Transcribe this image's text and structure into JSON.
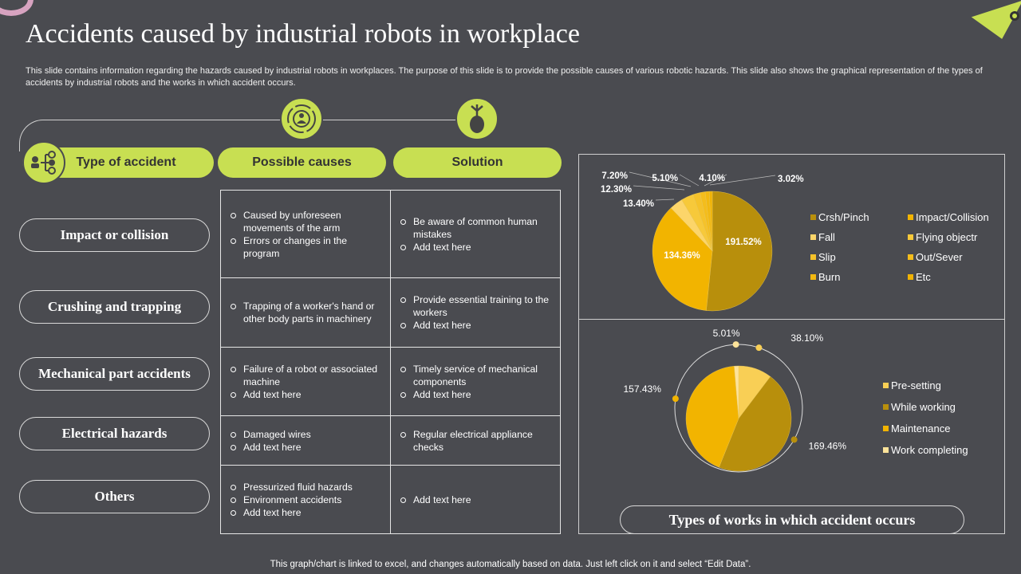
{
  "title": "Accidents caused by industrial robots in workplace",
  "description": "This slide contains information regarding the hazards caused by industrial robots in workplaces. The purpose of this slide is to provide the possible causes of various robotic hazards. This slide also shows the graphical representation of the types of accidents by industrial robots and the works in which accident occurs.",
  "headers": [
    "Type of accident",
    "Possible causes",
    "Solution"
  ],
  "rows": [
    {
      "type": "Impact or collision",
      "causes": [
        "Caused by unforeseen movements of the arm",
        "Errors or changes in the program"
      ],
      "solutions": [
        "Be aware of common human mistakes",
        "Add text here"
      ]
    },
    {
      "type": "Crushing and trapping",
      "causes": [
        "Trapping of a worker's hand or other body parts in machinery"
      ],
      "solutions": [
        "Provide essential training to the workers",
        "Add text here"
      ]
    },
    {
      "type": "Mechanical part accidents",
      "causes": [
        "Failure of a robot or associated machine",
        "Add text here"
      ],
      "solutions": [
        "Timely service of mechanical components",
        "Add text here"
      ]
    },
    {
      "type": "Electrical hazards",
      "causes": [
        "Damaged wires",
        "Add text here"
      ],
      "solutions": [
        "Regular electrical appliance checks"
      ]
    },
    {
      "type": "Others",
      "causes": [
        "Pressurized fluid hazards",
        "Environment accidents",
        "Add text here"
      ],
      "solutions": [
        "Add text here"
      ]
    }
  ],
  "colors": {
    "background": "#4a4b50",
    "accent": "#c8df52"
  },
  "chart_data": [
    {
      "type": "pie",
      "categories": [
        "Crsh/Pinch",
        "Impact/Collision",
        "Fall",
        "Flying objectr",
        "Slip",
        "Out/Sever",
        "Burn",
        "Etc"
      ],
      "values": [
        191.52,
        134.36,
        13.4,
        12.3,
        7.2,
        5.1,
        4.1,
        3.02
      ],
      "labels": [
        "191.52%",
        "134.36%",
        "13.40%",
        "12.30%",
        "7.20%",
        "5.10%",
        "4.10%",
        "3.02%"
      ],
      "colors": [
        "#b88f0c",
        "#f2b400",
        "#fcd56a",
        "#f7c93a",
        "#f5c22a",
        "#f4bd1c",
        "#f2b810",
        "#f0b305"
      ],
      "legend": "right"
    },
    {
      "type": "pie",
      "title": "Types of works in which accident occurs",
      "categories": [
        "Pre-setting",
        "While working",
        "Maintenance",
        "Work completing"
      ],
      "values": [
        38.1,
        169.46,
        157.43,
        5.01
      ],
      "labels": [
        "38.10%",
        "169.46%",
        "157.43%",
        "5.01%"
      ],
      "colors": [
        "#f9cf55",
        "#b88f0c",
        "#f2b400",
        "#fde39a"
      ],
      "legend": "right"
    }
  ],
  "footer": "This graph/chart is linked to excel, and changes automatically based on data. Just left click on it and select “Edit Data”."
}
